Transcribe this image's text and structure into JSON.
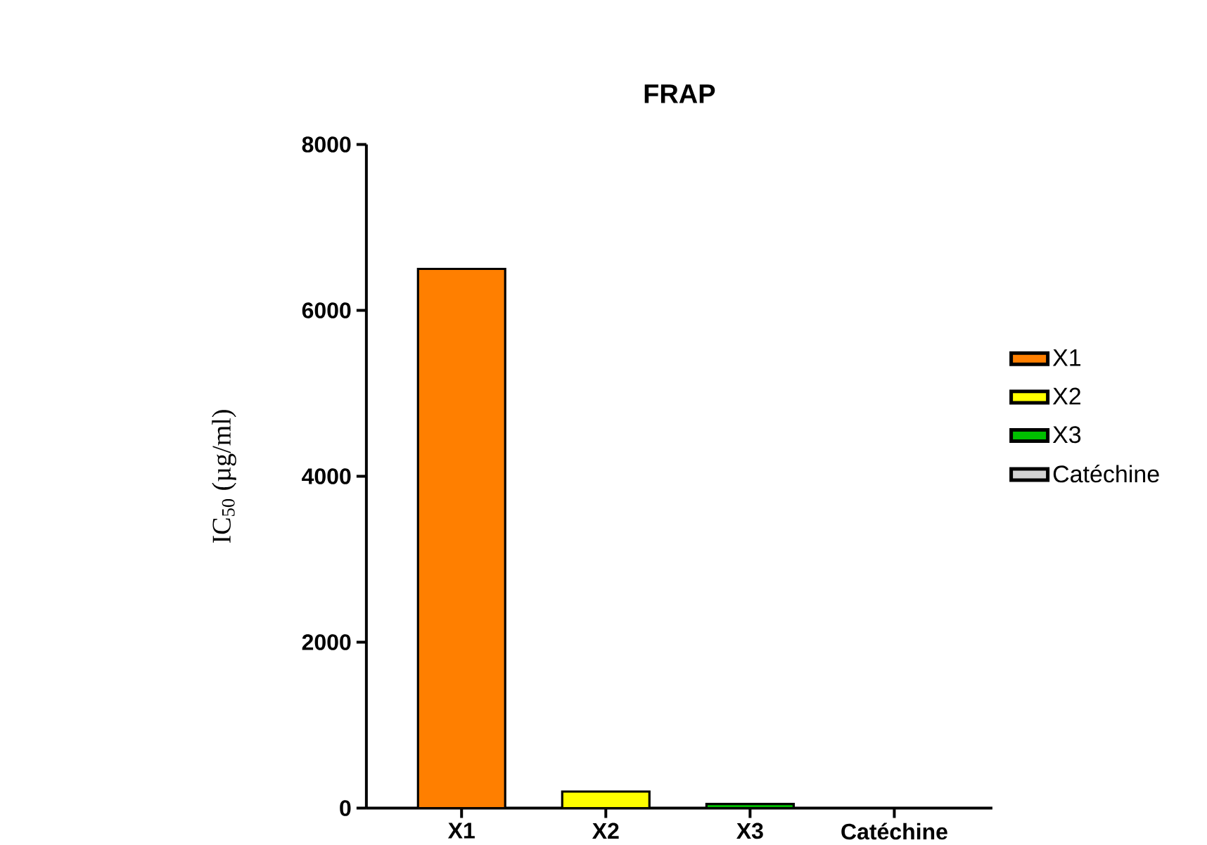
{
  "chart_data": {
    "type": "bar",
    "title": "FRAP",
    "ylabel": "IC$_{50}$ (µg/ml)",
    "categories": [
      "X1",
      "X2",
      "X3",
      "Catéchine"
    ],
    "series": [
      {
        "name": "X1",
        "color": "#ff7f00",
        "values": [
          6500,
          null,
          null,
          null
        ]
      },
      {
        "name": "X2",
        "color": "#ffff00",
        "values": [
          null,
          200,
          null,
          null
        ]
      },
      {
        "name": "X3",
        "color": "#00c000",
        "values": [
          null,
          null,
          50,
          null
        ]
      },
      {
        "name": "Catéchine",
        "color": "#d3d3d3",
        "values": [
          null,
          null,
          null,
          0
        ]
      }
    ],
    "ylim": [
      0,
      8000
    ],
    "yticks": [
      0,
      2000,
      4000,
      6000,
      8000
    ],
    "grid": false,
    "legend": "right"
  }
}
